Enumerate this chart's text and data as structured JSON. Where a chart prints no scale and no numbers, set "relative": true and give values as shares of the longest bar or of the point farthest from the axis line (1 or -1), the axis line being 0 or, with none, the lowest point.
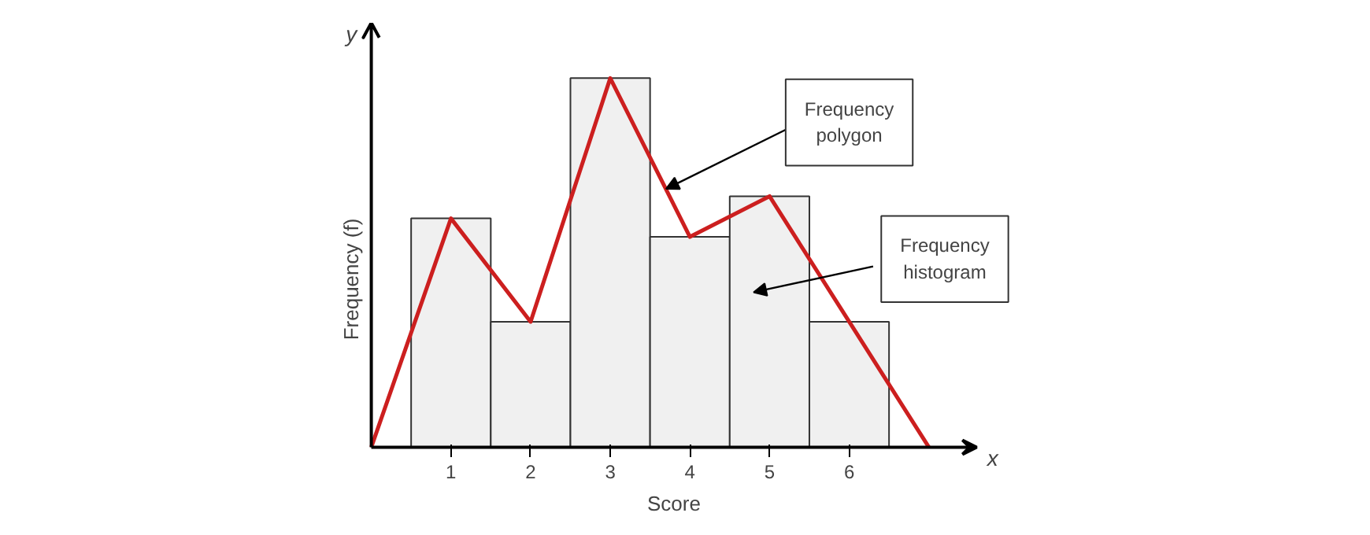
{
  "chart_data": {
    "type": "histogram",
    "relative": true,
    "xlabel": "Score",
    "ylabel": "Frequency (f)",
    "xlim": [
      0,
      7.6
    ],
    "xticks": [
      1,
      2,
      3,
      4,
      5,
      6
    ],
    "grid": false,
    "bins": [
      0.5,
      1.5,
      2.5,
      3.5,
      4.5,
      5.5,
      6.5
    ],
    "series": [
      {
        "color": "#f0f0f0",
        "values": [
          0.62,
          0.34,
          1,
          0.57,
          0.68,
          0.34
        ]
      },
      {
        "type": "line",
        "color": "#cc1f1f",
        "x": [
          0,
          1,
          2,
          3,
          4,
          5,
          6,
          7
        ],
        "values": [
          0,
          0.62,
          0.34,
          1,
          0.57,
          0.68,
          0.34,
          0
        ]
      }
    ],
    "annotations": [
      "x",
      "y",
      "Frequency polygon",
      "Frequency histogram"
    ]
  }
}
